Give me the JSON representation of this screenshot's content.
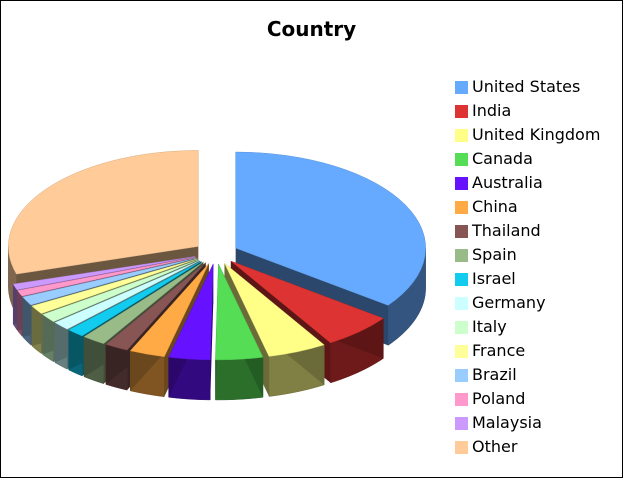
{
  "chart_data": {
    "type": "pie",
    "title": "Country",
    "legend_position": "right",
    "three_d": true,
    "exploded": true,
    "slices": [
      {
        "label": "United States",
        "value": 35,
        "color": "#66aaff"
      },
      {
        "label": "India",
        "value": 6,
        "color": "#dd3333"
      },
      {
        "label": "United Kingdom",
        "value": 5,
        "color": "#ffff88"
      },
      {
        "label": "Canada",
        "value": 4,
        "color": "#55dd55"
      },
      {
        "label": "Australia",
        "value": 3.5,
        "color": "#6611ff"
      },
      {
        "label": "China",
        "value": 3,
        "color": "#ffaa44"
      },
      {
        "label": "Thailand",
        "value": 2,
        "color": "#885555"
      },
      {
        "label": "Spain",
        "value": 2,
        "color": "#99bb88"
      },
      {
        "label": "Israel",
        "value": 1.5,
        "color": "#11ccee"
      },
      {
        "label": "Germany",
        "value": 1.5,
        "color": "#ccffff"
      },
      {
        "label": "Italy",
        "value": 1.5,
        "color": "#ccffcc"
      },
      {
        "label": "France",
        "value": 1.5,
        "color": "#ffff99"
      },
      {
        "label": "Brazil",
        "value": 1.5,
        "color": "#99ccff"
      },
      {
        "label": "Poland",
        "value": 1,
        "color": "#ff99cc"
      },
      {
        "label": "Malaysia",
        "value": 1,
        "color": "#cc99ff"
      },
      {
        "label": "Other",
        "value": 29.5,
        "color": "#ffcc99"
      }
    ]
  }
}
